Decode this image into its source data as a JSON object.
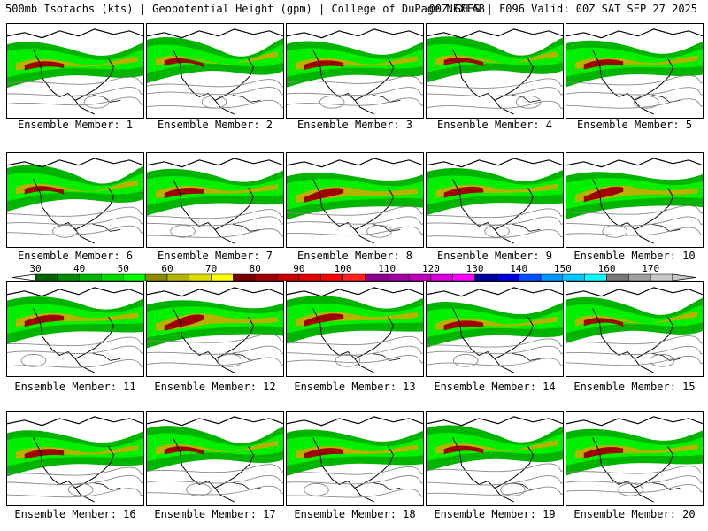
{
  "header": {
    "left_text": "500mb Isotachs (kts) | Geopotential Height (gpm) | College of DuPage NEXLAB",
    "right_text": "00Z GEFS | F096 Valid: 00Z SAT SEP 27 2025"
  },
  "members": [
    {
      "label": "Ensemble Member: 1"
    },
    {
      "label": "Ensemble Member: 2"
    },
    {
      "label": "Ensemble Member: 3"
    },
    {
      "label": "Ensemble Member: 4"
    },
    {
      "label": "Ensemble Member: 5"
    },
    {
      "label": "Ensemble Member: 6"
    },
    {
      "label": "Ensemble Member: 7"
    },
    {
      "label": "Ensemble Member: 8"
    },
    {
      "label": "Ensemble Member: 9"
    },
    {
      "label": "Ensemble Member: 10"
    },
    {
      "label": "Ensemble Member: 11"
    },
    {
      "label": "Ensemble Member: 12"
    },
    {
      "label": "Ensemble Member: 13"
    },
    {
      "label": "Ensemble Member: 14"
    },
    {
      "label": "Ensemble Member: 15"
    },
    {
      "label": "Ensemble Member: 16"
    },
    {
      "label": "Ensemble Member: 17"
    },
    {
      "label": "Ensemble Member: 18"
    },
    {
      "label": "Ensemble Member: 19"
    },
    {
      "label": "Ensemble Member: 20"
    }
  ],
  "colorbar": {
    "tick_labels": [
      "30",
      "40",
      "50",
      "60",
      "70",
      "80",
      "90",
      "100",
      "110",
      "120",
      "130",
      "140",
      "150",
      "160",
      "170"
    ],
    "colors": [
      "#006400",
      "#008c00",
      "#00b400",
      "#00dc00",
      "#00ff00",
      "#8c8c00",
      "#b4b400",
      "#dcdc00",
      "#ffff00",
      "#780000",
      "#a00000",
      "#c80000",
      "#e60000",
      "#ff0000",
      "#ff2020",
      "#8c008c",
      "#a000a0",
      "#be00be",
      "#dc00dc",
      "#ff00ff",
      "#0000a0",
      "#0000dc",
      "#0050ff",
      "#0096ff",
      "#00c8ff",
      "#00ffff",
      "#787878",
      "#a0a0a0",
      "#c8c8c8"
    ]
  }
}
